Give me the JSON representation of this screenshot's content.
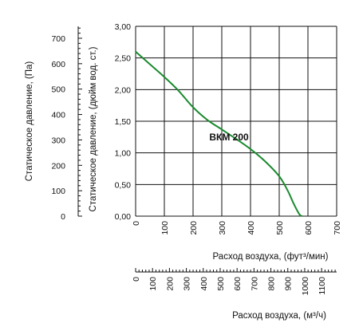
{
  "chart_data": {
    "type": "line",
    "series": [
      {
        "name": "ВКМ 200",
        "x": [
          0,
          50,
          100,
          150,
          200,
          250,
          300,
          350,
          400,
          450,
          500,
          530,
          550,
          570,
          580
        ],
        "y": [
          2.6,
          2.4,
          2.2,
          1.98,
          1.72,
          1.52,
          1.37,
          1.22,
          1.06,
          0.87,
          0.63,
          0.4,
          0.2,
          0.03,
          0.0
        ],
        "color": "#1a8a2e"
      }
    ],
    "x_axis": {
      "label": "Расход воздуха, (фут³/мин)",
      "ticks": [
        "0",
        "100",
        "200",
        "300",
        "400",
        "500",
        "600",
        "700"
      ],
      "xlim": [
        0,
        700
      ]
    },
    "x2_axis": {
      "label": "Расход воздуха, (м³/ч)",
      "ticks": [
        "0",
        "100",
        "200",
        "300",
        "400",
        "500",
        "600",
        "700",
        "800",
        "900",
        "1000",
        "1100"
      ],
      "xlim": [
        0,
        1189
      ]
    },
    "y_axis": {
      "label": "Статическое давление, (дюйм вод. ст.)",
      "ticks": [
        "0,00",
        "0,50",
        "1,00",
        "1,50",
        "2,00",
        "2,50",
        "3,00"
      ],
      "ylim": [
        0,
        3
      ]
    },
    "y2_axis": {
      "label": "Статическое давление, (Па)",
      "ticks": [
        "0",
        "100",
        "200",
        "300",
        "400",
        "500",
        "600",
        "700"
      ],
      "ylim": [
        0,
        747
      ]
    },
    "grid": true,
    "line_color": "#1a8a2e"
  }
}
